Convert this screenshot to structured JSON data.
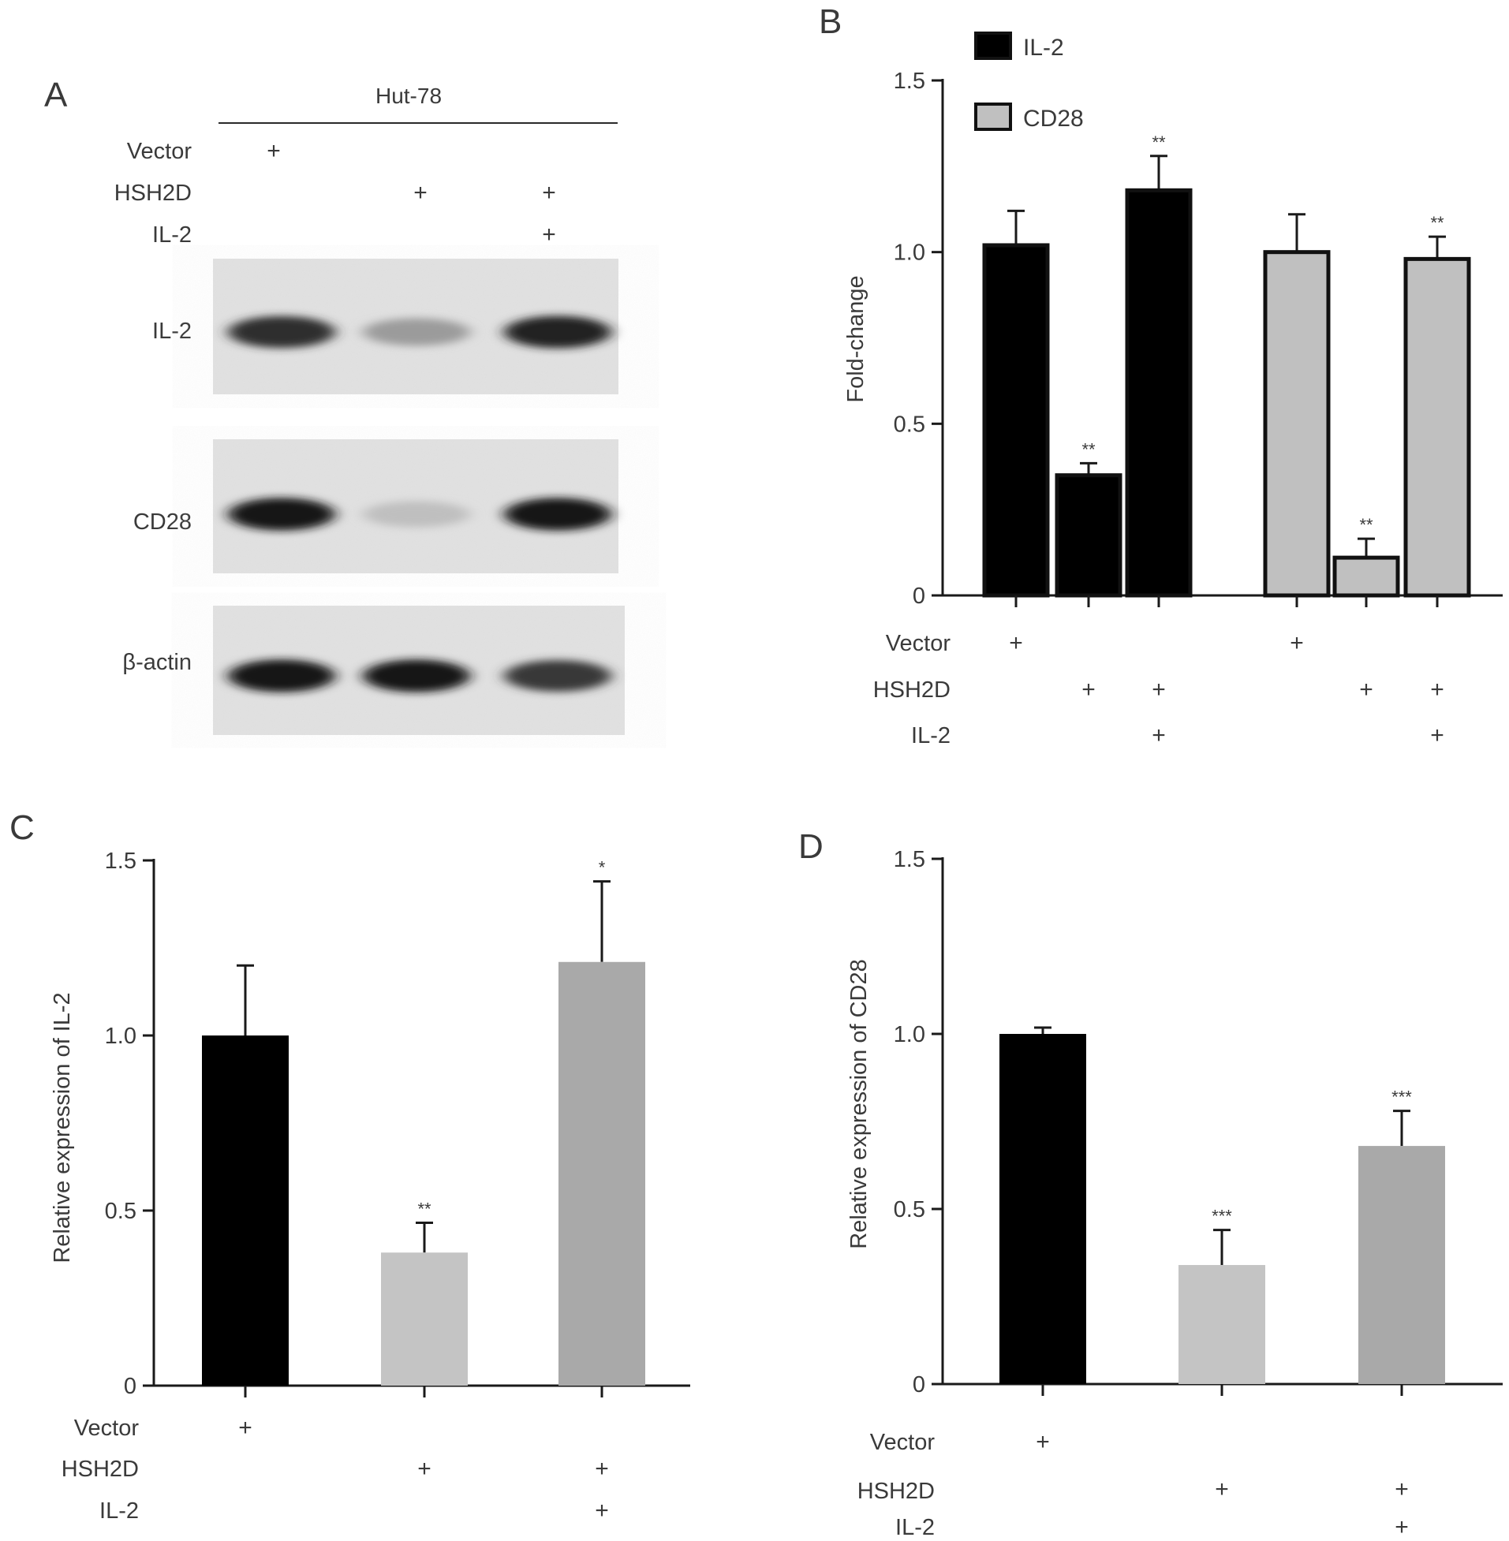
{
  "panels": {
    "A": {
      "letter": "A",
      "header": "Hut-78",
      "conditions": [
        {
          "label": "Vector",
          "marks": [
            "+",
            "",
            ""
          ]
        },
        {
          "label": "HSH2D",
          "marks": [
            "",
            "+",
            "+"
          ]
        },
        {
          "label": "IL-2",
          "marks": [
            "",
            "",
            "+"
          ]
        }
      ],
      "blots": [
        {
          "label": "IL-2",
          "intensity": [
            0.85,
            0.3,
            0.9
          ]
        },
        {
          "label": "CD28",
          "intensity": [
            0.95,
            0.12,
            0.95
          ]
        },
        {
          "label": "β-actin",
          "intensity": [
            0.95,
            0.95,
            0.8
          ]
        }
      ]
    },
    "B": {
      "letter": "B"
    },
    "C": {
      "letter": "C"
    },
    "D": {
      "letter": "D"
    }
  },
  "chart_data": [
    {
      "panel": "B",
      "type": "bar",
      "ylabel": "Fold-change",
      "ylim": [
        0,
        1.5
      ],
      "yticks": [
        0,
        0.5,
        1.0,
        1.5
      ],
      "ytick_labels": [
        "0",
        "0.5",
        "1.0",
        "1.5"
      ],
      "legend": [
        {
          "name": "IL-2",
          "color": "#000000"
        },
        {
          "name": "CD28",
          "color": "#c0c0c0"
        }
      ],
      "legend_position": "top-left",
      "series": [
        {
          "name": "IL-2",
          "color": "#000000",
          "values": [
            1.02,
            0.35,
            1.18
          ],
          "errors": [
            0.1,
            0.035,
            0.1
          ],
          "sig": [
            "",
            "**",
            "**"
          ]
        },
        {
          "name": "CD28",
          "color": "#c0c0c0",
          "values": [
            1.0,
            0.11,
            0.98
          ],
          "errors": [
            0.11,
            0.055,
            0.065
          ],
          "sig": [
            "",
            "**",
            "**"
          ]
        }
      ],
      "conditions": [
        {
          "label": "Vector",
          "marks": [
            "+",
            "",
            "",
            "+",
            "",
            ""
          ]
        },
        {
          "label": "HSH2D",
          "marks": [
            "",
            "+",
            "+",
            "",
            "+",
            "+"
          ]
        },
        {
          "label": "IL-2",
          "marks": [
            "",
            "",
            "+",
            "",
            "",
            "+"
          ]
        }
      ]
    },
    {
      "panel": "C",
      "type": "bar",
      "ylabel": "Relative expression of IL-2",
      "ylim": [
        0,
        1.5
      ],
      "yticks": [
        0,
        0.5,
        1.0,
        1.5
      ],
      "ytick_labels": [
        "0",
        "0.5",
        "1.0",
        "1.5"
      ],
      "values": [
        1.0,
        0.38,
        1.21
      ],
      "errors": [
        0.2,
        0.085,
        0.23
      ],
      "colors": [
        "#000000",
        "#c4c4c4",
        "#a9a9a9"
      ],
      "sig": [
        "",
        "**",
        "*"
      ],
      "conditions": [
        {
          "label": "Vector",
          "marks": [
            "+",
            "",
            ""
          ]
        },
        {
          "label": "HSH2D",
          "marks": [
            "",
            "+",
            "+"
          ]
        },
        {
          "label": "IL-2",
          "marks": [
            "",
            "",
            "+"
          ]
        }
      ]
    },
    {
      "panel": "D",
      "type": "bar",
      "ylabel": "Relative expression of CD28",
      "ylim": [
        0,
        1.5
      ],
      "yticks": [
        0,
        0.5,
        1.0,
        1.5
      ],
      "ytick_labels": [
        "0",
        "0.5",
        "1.0",
        "1.5"
      ],
      "values": [
        1.0,
        0.34,
        0.68
      ],
      "errors": [
        0.018,
        0.1,
        0.1
      ],
      "colors": [
        "#000000",
        "#c4c4c4",
        "#a9a9a9"
      ],
      "sig": [
        "",
        "***",
        "***"
      ],
      "conditions": [
        {
          "label": "Vector",
          "marks": [
            "+",
            "",
            ""
          ]
        },
        {
          "label": "HSH2D",
          "marks": [
            "",
            "+",
            "+"
          ]
        },
        {
          "label": "IL-2",
          "marks": [
            "",
            "",
            "+"
          ]
        }
      ]
    }
  ]
}
